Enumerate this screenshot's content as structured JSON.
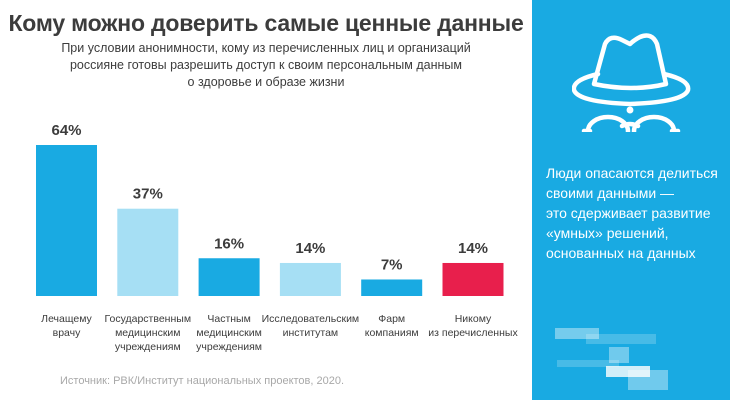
{
  "header": {
    "title": "Кому можно доверить самые ценные данные",
    "subtitle_lines": [
      "При условии анонимности, кому из перечисленных лиц и организаций",
      "россияне готовы разрешить доступ к своим персональным данным",
      "о здоровье и образе жизни"
    ]
  },
  "chart_data": {
    "type": "bar",
    "title": "Кому можно доверить самые ценные данные",
    "xlabel": "",
    "ylabel": "",
    "ylim": [
      0,
      64
    ],
    "grid": false,
    "legend": "none",
    "unit": "%",
    "categories": [
      [
        "Лечащему",
        "врачу"
      ],
      [
        "Государственным",
        "медицинским",
        "учреждениям"
      ],
      [
        "Частным",
        "медицинским",
        "учреждениям"
      ],
      [
        "Исследовательским",
        "институтам"
      ],
      [
        "Фарм",
        "компаниям"
      ],
      [
        "Никому",
        "из перечисленных"
      ]
    ],
    "values": [
      64,
      37,
      16,
      14,
      7,
      14
    ],
    "value_labels": [
      "64%",
      "37%",
      "16%",
      "14%",
      "7%",
      "14%"
    ],
    "colors": [
      "#19aae2",
      "#a6dff4",
      "#19aae2",
      "#a6dff4",
      "#19aae2",
      "#e81f4c"
    ]
  },
  "source": "Источник: РВК/Институт национальных проектов, 2020.",
  "side_panel": {
    "icon": "spy-incognito-icon",
    "background": "#19aae2",
    "text_lines": [
      "Люди опасаются делиться",
      "своими данными —",
      "это сдерживает развитие",
      "«умных» решений,",
      "основанных на данных"
    ]
  }
}
